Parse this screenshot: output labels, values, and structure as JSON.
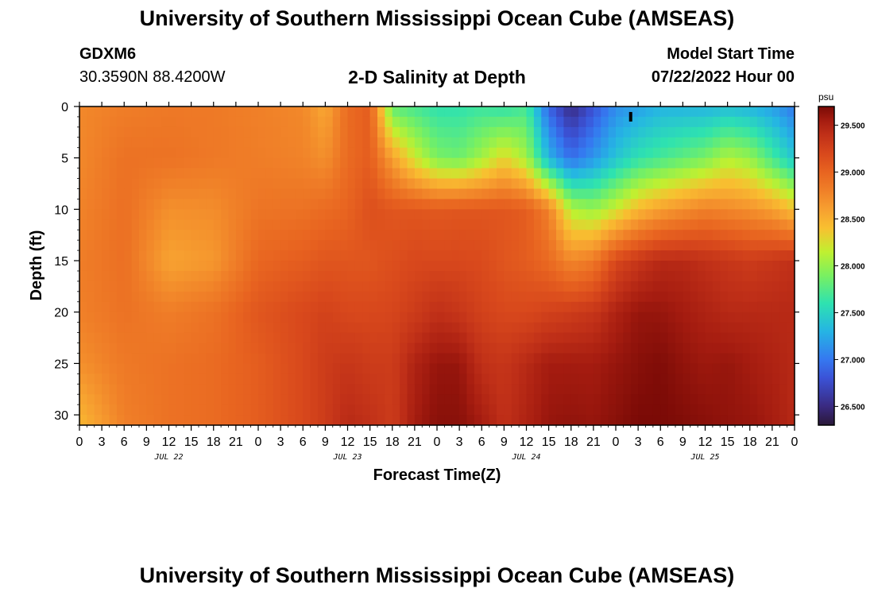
{
  "header": {
    "title": "University of Southern Mississippi Ocean Cube (AMSEAS)",
    "station": "GDXM6",
    "coords": "30.3590N  88.4200W",
    "subtitle": "2-D Salinity at Depth",
    "model_start_label": "Model Start Time",
    "model_start_value": "07/22/2022 Hour 00"
  },
  "footer": {
    "title": "University of Southern Mississippi Ocean Cube (AMSEAS)"
  },
  "chart_data": {
    "type": "heatmap",
    "title": "2-D Salinity at Depth",
    "xlabel": "Forecast Time(Z)",
    "ylabel": "Depth (ft)",
    "x_tick_labels": [
      "0",
      "3",
      "6",
      "9",
      "12",
      "15",
      "18",
      "21",
      "0",
      "3",
      "6",
      "9",
      "12",
      "15",
      "18",
      "21",
      "0",
      "3",
      "6",
      "9",
      "12",
      "15",
      "18",
      "21",
      "0",
      "3",
      "6",
      "9",
      "12",
      "15",
      "18",
      "21",
      "0"
    ],
    "day_labels": [
      "JUL 22",
      "JUL 23",
      "JUL 24",
      "JUL 25"
    ],
    "y_ticks": [
      0,
      5,
      10,
      15,
      20,
      25,
      30
    ],
    "ylim": [
      0,
      31
    ],
    "xlim_hours": [
      0,
      96
    ],
    "colorbar": {
      "unit": "psu",
      "min": 26.3,
      "max": 29.7,
      "ticks": [
        "26.500",
        "27.000",
        "27.500",
        "28.000",
        "28.500",
        "29.000",
        "29.500"
      ],
      "tick_values": [
        26.5,
        27.0,
        27.5,
        28.0,
        28.5,
        29.0,
        29.5
      ]
    },
    "colormap": [
      [
        26.3,
        "#2a1838"
      ],
      [
        26.5,
        "#3a2a80"
      ],
      [
        26.8,
        "#3b52d6"
      ],
      [
        27.0,
        "#3578f0"
      ],
      [
        27.3,
        "#25b4e4"
      ],
      [
        27.6,
        "#2ee2b0"
      ],
      [
        27.9,
        "#7af060"
      ],
      [
        28.15,
        "#c0f030"
      ],
      [
        28.4,
        "#f8c030"
      ],
      [
        28.6,
        "#f7a030"
      ],
      [
        28.8,
        "#f08028"
      ],
      [
        29.0,
        "#e86420"
      ],
      [
        29.2,
        "#d8481c"
      ],
      [
        29.4,
        "#c03018"
      ],
      [
        29.55,
        "#a51c10"
      ],
      [
        29.7,
        "#7a0a06"
      ]
    ],
    "depths_ft": [
      0,
      5,
      10,
      15,
      20,
      25,
      31
    ],
    "times_hours": [
      0,
      6,
      12,
      18,
      24,
      30,
      33,
      36,
      39,
      42,
      45,
      48,
      51,
      54,
      57,
      60,
      63,
      66,
      69,
      72,
      75,
      78,
      81,
      84,
      87,
      90,
      93,
      96
    ],
    "salinity_psu": [
      [
        28.75,
        28.82,
        28.85,
        28.85,
        28.8,
        28.75,
        28.55,
        28.95,
        29.05,
        27.8,
        27.7,
        27.6,
        27.6,
        27.65,
        27.6,
        27.7,
        26.9,
        26.5,
        26.8,
        27.1,
        27.2,
        27.3,
        27.3,
        27.3,
        27.35,
        27.3,
        27.2,
        27.0
      ],
      [
        28.75,
        28.9,
        28.9,
        28.85,
        28.82,
        28.78,
        28.7,
        28.95,
        29.05,
        28.6,
        28.2,
        27.9,
        27.85,
        28.05,
        28.3,
        28.05,
        27.3,
        26.95,
        27.15,
        27.4,
        27.6,
        27.7,
        27.8,
        27.9,
        28.1,
        28.0,
        27.7,
        27.4
      ],
      [
        28.78,
        28.92,
        28.7,
        28.72,
        28.88,
        28.9,
        28.95,
        29.0,
        29.15,
        29.1,
        29.1,
        29.08,
        29.1,
        29.1,
        29.1,
        29.05,
        28.8,
        28.1,
        28.0,
        28.2,
        28.45,
        28.6,
        28.7,
        28.8,
        28.75,
        28.7,
        28.6,
        28.4
      ],
      [
        28.82,
        28.92,
        28.58,
        28.65,
        28.98,
        29.05,
        29.1,
        29.1,
        29.1,
        29.15,
        29.2,
        29.2,
        29.2,
        29.18,
        29.1,
        29.05,
        28.95,
        28.75,
        28.85,
        29.2,
        29.35,
        29.45,
        29.45,
        29.4,
        29.35,
        29.3,
        29.35,
        29.4
      ],
      [
        28.8,
        28.9,
        28.82,
        28.9,
        29.1,
        29.2,
        29.25,
        29.2,
        29.2,
        29.22,
        29.3,
        29.4,
        29.35,
        29.25,
        29.2,
        29.2,
        29.25,
        29.3,
        29.35,
        29.5,
        29.6,
        29.6,
        29.55,
        29.5,
        29.45,
        29.45,
        29.45,
        29.45
      ],
      [
        28.7,
        28.85,
        28.9,
        28.95,
        29.05,
        29.2,
        29.3,
        29.35,
        29.3,
        29.3,
        29.5,
        29.6,
        29.6,
        29.4,
        29.35,
        29.45,
        29.55,
        29.55,
        29.55,
        29.6,
        29.65,
        29.68,
        29.62,
        29.58,
        29.6,
        29.55,
        29.5,
        29.45
      ],
      [
        28.45,
        28.8,
        28.9,
        28.95,
        29.05,
        29.2,
        29.3,
        29.45,
        29.4,
        29.3,
        29.55,
        29.65,
        29.65,
        29.55,
        29.4,
        29.5,
        29.6,
        29.62,
        29.6,
        29.65,
        29.7,
        29.7,
        29.68,
        29.65,
        29.62,
        29.6,
        29.55,
        29.45
      ]
    ],
    "annotations": [
      {
        "type": "marker",
        "time_hours": 74,
        "depth_ft": 1
      }
    ]
  }
}
